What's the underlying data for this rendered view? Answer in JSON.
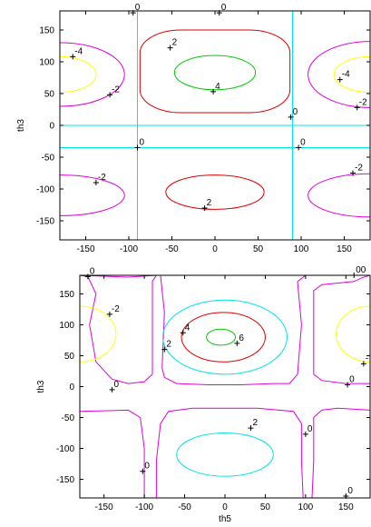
{
  "chart_data": [
    {
      "type": "contour",
      "xlabel": "",
      "ylabel": "th3",
      "xlim": [
        -180,
        180
      ],
      "ylim": [
        -180,
        180
      ],
      "xticks": [
        "-150",
        "-100",
        "-50",
        "0",
        "50",
        "100",
        "150"
      ],
      "yticks": [
        "150",
        "100",
        "50",
        "0",
        "-50",
        "-100",
        "-150"
      ],
      "lines": [
        {
          "orient": "v",
          "value": -90,
          "color": "#00e5e5"
        },
        {
          "orient": "v",
          "value": 90,
          "color": "#00e5e5"
        },
        {
          "orient": "h",
          "value": 0,
          "color": "#00e5e5"
        },
        {
          "orient": "h",
          "value": -35,
          "color": "#00e5e5"
        }
      ],
      "contours": [
        {
          "level": 4,
          "color": "#00cc00",
          "cx": 0,
          "cy": 83,
          "rx": 47,
          "ry": 27,
          "type": "ellipse"
        },
        {
          "level": 2,
          "color": "#e00000",
          "cx": 0,
          "cy": 85,
          "rx": 87,
          "ry": 65,
          "type": "rect"
        },
        {
          "level": 2,
          "color": "#e00000",
          "cx": 0,
          "cy": -105,
          "rx": 57,
          "ry": 27,
          "type": "ellipse"
        },
        {
          "level": -4,
          "color": "#ffff00",
          "cx": -180,
          "cy": 80,
          "rx": 42,
          "ry": 28,
          "type": "ellipse"
        },
        {
          "level": -4,
          "color": "#ffff00",
          "cx": 180,
          "cy": 80,
          "rx": 42,
          "ry": 28,
          "type": "ellipse"
        },
        {
          "level": -2,
          "color": "#e000e0",
          "cx": -180,
          "cy": 80,
          "rx": 75,
          "ry": 50,
          "type": "ellipse"
        },
        {
          "level": -2,
          "color": "#e000e0",
          "cx": 180,
          "cy": 80,
          "rx": 72,
          "ry": 52,
          "type": "ellipse"
        },
        {
          "level": -2,
          "color": "#e000e0",
          "cx": -180,
          "cy": -110,
          "rx": 75,
          "ry": 32,
          "type": "ellipse"
        },
        {
          "level": -2,
          "color": "#e000e0",
          "cx": 180,
          "cy": -110,
          "rx": 72,
          "ry": 34,
          "type": "ellipse"
        }
      ],
      "labels": [
        {
          "text": "0",
          "x": -95,
          "y": 177
        },
        {
          "text": "0",
          "x": 5,
          "y": 177
        },
        {
          "text": "-4",
          "x": -165,
          "y": 108
        },
        {
          "text": "2",
          "x": -52,
          "y": 122
        },
        {
          "text": "-4",
          "x": 145,
          "y": 72
        },
        {
          "text": "4",
          "x": -2,
          "y": 53
        },
        {
          "text": "-2",
          "x": -122,
          "y": 48
        },
        {
          "text": "-2",
          "x": 165,
          "y": 28
        },
        {
          "text": "0",
          "x": 88,
          "y": 13
        },
        {
          "text": "0",
          "x": -90,
          "y": -35
        },
        {
          "text": "0",
          "x": 97,
          "y": -35
        },
        {
          "text": "-2",
          "x": -138,
          "y": -90
        },
        {
          "text": "-2",
          "x": 160,
          "y": -75
        },
        {
          "text": "2",
          "x": -12,
          "y": -130
        }
      ]
    },
    {
      "type": "contour",
      "xlabel": "th5",
      "ylabel": "th3",
      "xlim": [
        -180,
        180
      ],
      "ylim": [
        -180,
        180
      ],
      "xticks": [
        "-150",
        "-100",
        "-50",
        "0",
        "50",
        "100",
        "150"
      ],
      "yticks": [
        "150",
        "100",
        "50",
        "0",
        "-50",
        "-100",
        "-150"
      ],
      "lines": [],
      "contours": [
        {
          "level": 6,
          "color": "#00cc00",
          "cx": -5,
          "cy": 80,
          "rx": 18,
          "ry": 13,
          "type": "ellipse"
        },
        {
          "level": 4,
          "color": "#e00000",
          "cx": -2,
          "cy": 80,
          "rx": 52,
          "ry": 40,
          "type": "ellipse"
        },
        {
          "level": 2,
          "color": "#00e5e5",
          "cx": 0,
          "cy": 80,
          "rx": 77,
          "ry": 60,
          "type": "ellipse"
        },
        {
          "level": 2,
          "color": "#00e5e5",
          "cx": 0,
          "cy": -110,
          "rx": 60,
          "ry": 35,
          "type": "ellipse"
        },
        {
          "level": -2,
          "color": "#ffff00",
          "cx": -180,
          "cy": 85,
          "rx": 45,
          "ry": 45,
          "type": "ellipse"
        },
        {
          "level": -2,
          "color": "#ffff00",
          "cx": 180,
          "cy": 85,
          "rx": 42,
          "ry": 45,
          "type": "ellipse"
        }
      ],
      "labels": [
        {
          "text": "0",
          "x": -170,
          "y": 178
        },
        {
          "text": "00",
          "x": 160,
          "y": 180
        },
        {
          "text": "-2",
          "x": -143,
          "y": 117
        },
        {
          "text": "4",
          "x": -52,
          "y": 87
        },
        {
          "text": "2",
          "x": -75,
          "y": 60
        },
        {
          "text": "6",
          "x": 15,
          "y": 70
        },
        {
          "text": "-",
          "x": 172,
          "y": 37
        },
        {
          "text": "0",
          "x": -140,
          "y": -5
        },
        {
          "text": "0",
          "x": 152,
          "y": 3
        },
        {
          "text": "2",
          "x": 32,
          "y": -67
        },
        {
          "text": "0",
          "x": 100,
          "y": -77
        },
        {
          "text": "0",
          "x": -102,
          "y": -137
        },
        {
          "text": "0",
          "x": 150,
          "y": -177
        }
      ]
    }
  ]
}
